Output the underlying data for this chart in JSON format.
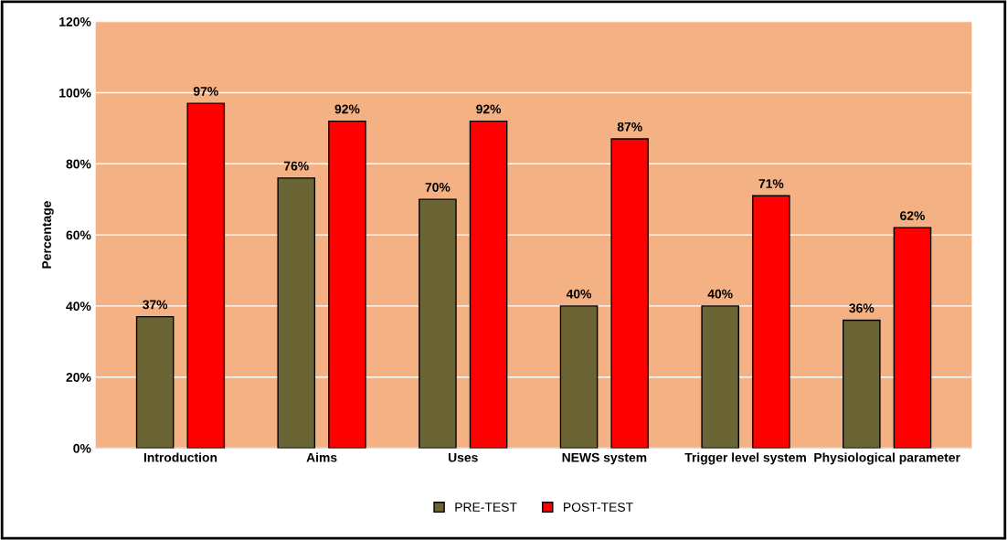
{
  "chart_data": {
    "type": "bar",
    "ylabel": "Percentage",
    "categories": [
      "Introduction",
      "Aims",
      "Uses",
      "NEWS system",
      "Trigger level system",
      "Physiological parameter"
    ],
    "series": [
      {
        "name": "PRE-TEST",
        "color": "#6b6535",
        "values": [
          37,
          76,
          70,
          40,
          40,
          36
        ],
        "value_labels": [
          "37%",
          "76%",
          "70%",
          "40%",
          "40%",
          "36%"
        ]
      },
      {
        "name": "POST-TEST",
        "color": "#ff0000",
        "values": [
          97,
          92,
          92,
          87,
          71,
          62
        ],
        "value_labels": [
          "97%",
          "92%",
          "92%",
          "87%",
          "71%",
          "62%"
        ]
      }
    ],
    "ylim": [
      0,
      120
    ],
    "yticks": [
      {
        "value": 0,
        "label": "0%"
      },
      {
        "value": 20,
        "label": "20%"
      },
      {
        "value": 40,
        "label": "40%"
      },
      {
        "value": 60,
        "label": "60%"
      },
      {
        "value": 80,
        "label": "80%"
      },
      {
        "value": 100,
        "label": "100%"
      },
      {
        "value": 120,
        "label": "120%"
      }
    ],
    "grid": "y",
    "legend": "bottom"
  }
}
